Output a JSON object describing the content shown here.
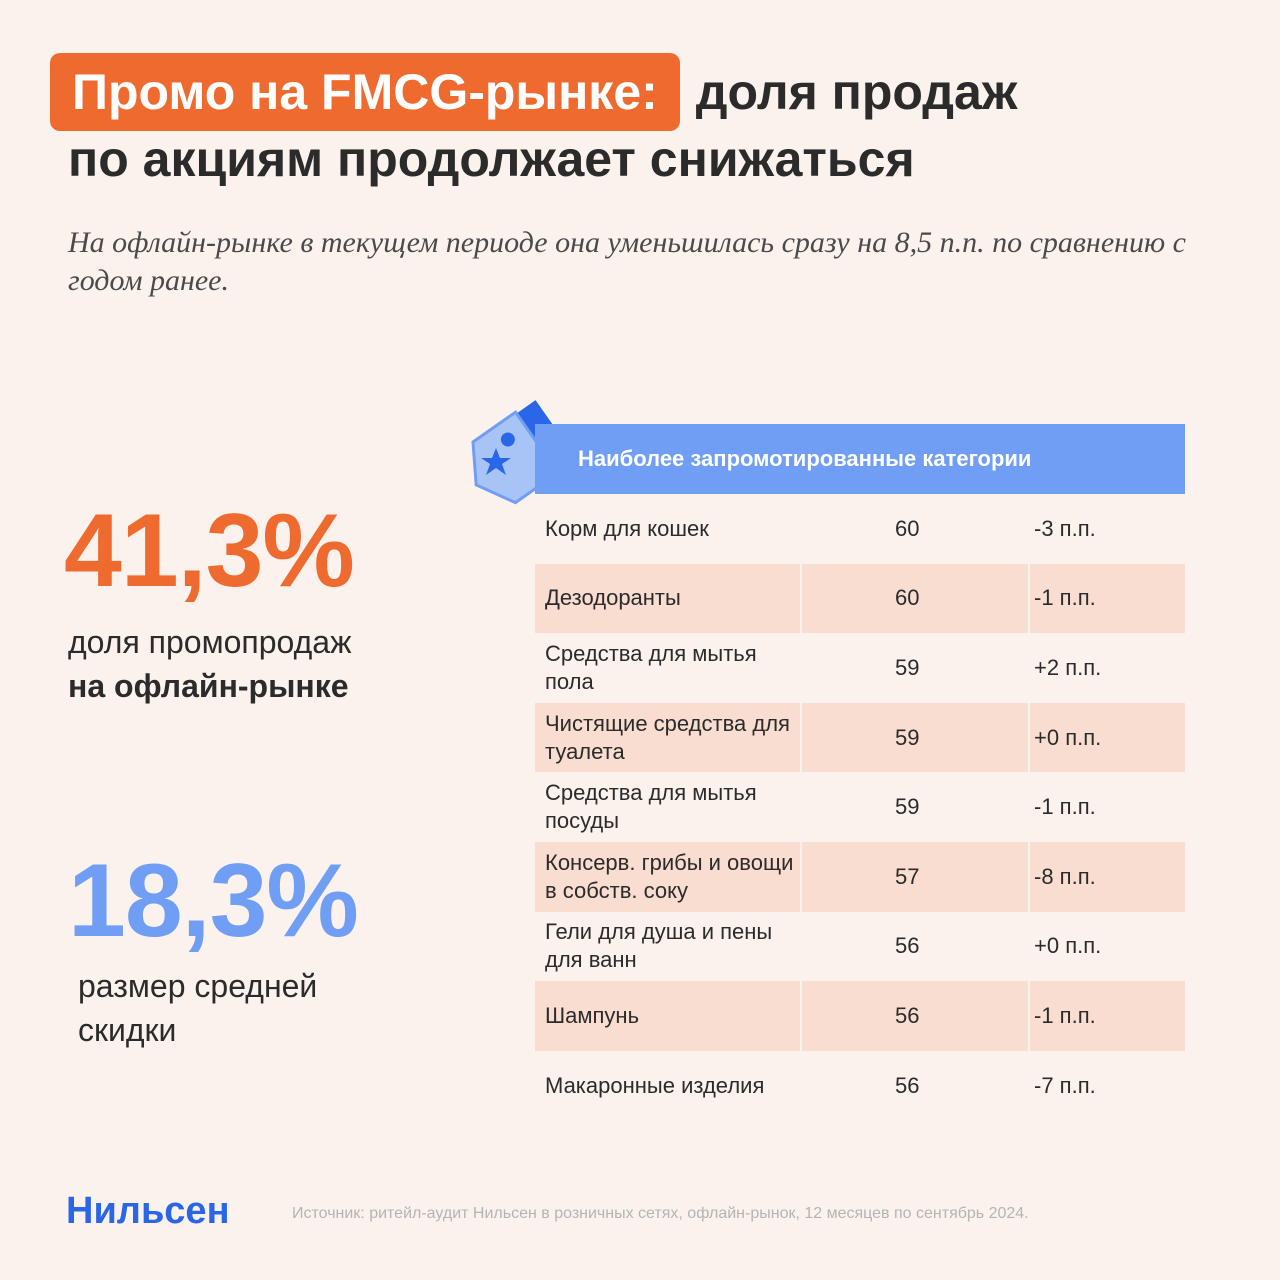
{
  "title": {
    "highlight": "Промо на FMCG-рынке:",
    "rest": "доля продаж",
    "line2": "по акциям продолжает снижаться"
  },
  "subtitle": "На офлайн-рынке в текущем периоде она уменьшилась сразу на 8,5 п.п. по сравнению с годом ранее.",
  "stats": [
    {
      "value": "41,3%",
      "label_line1": "доля промопродаж",
      "label_line2": "на офлайн-рынке",
      "color": "#ef6a2e"
    },
    {
      "value": "18,3%",
      "label": "размер средней скидки",
      "color": "#6f9ef4"
    }
  ],
  "table": {
    "header": "Наиболее запромотированные категории",
    "rows": [
      {
        "name": "Корм для кошек",
        "value": "60",
        "change": "-3 п.п."
      },
      {
        "name": "Дезодоранты",
        "value": "60",
        "change": "-1 п.п."
      },
      {
        "name": "Средства для мытья пола",
        "value": "59",
        "change": "+2 п.п."
      },
      {
        "name": "Чистящие средства для туалета",
        "value": "59",
        "change": "+0 п.п."
      },
      {
        "name": "Средства для мытья посуды",
        "value": "59",
        "change": "-1 п.п."
      },
      {
        "name": "Консерв. грибы и овощи в собств. соку",
        "value": "57",
        "change": "-8 п.п."
      },
      {
        "name": "Гели для душа и пены для ванн",
        "value": "56",
        "change": "+0 п.п."
      },
      {
        "name": "Шампунь",
        "value": "56",
        "change": "-1 п.п."
      },
      {
        "name": "Макаронные изделия",
        "value": "56",
        "change": "-7 п.п."
      }
    ]
  },
  "footer": {
    "logo": "Нильсен",
    "source": "Источник: ритейл-аудит Нильсен в розничных сетях, офлайн-рынок, 12 месяцев по сентябрь 2024."
  },
  "colors": {
    "accent_orange": "#ef6a2e",
    "accent_blue": "#6f9ef4",
    "logo_blue": "#2a66e8",
    "row_alt": "#f9ddd0"
  },
  "icons": [
    "price-tag-icon",
    "star-icon"
  ]
}
